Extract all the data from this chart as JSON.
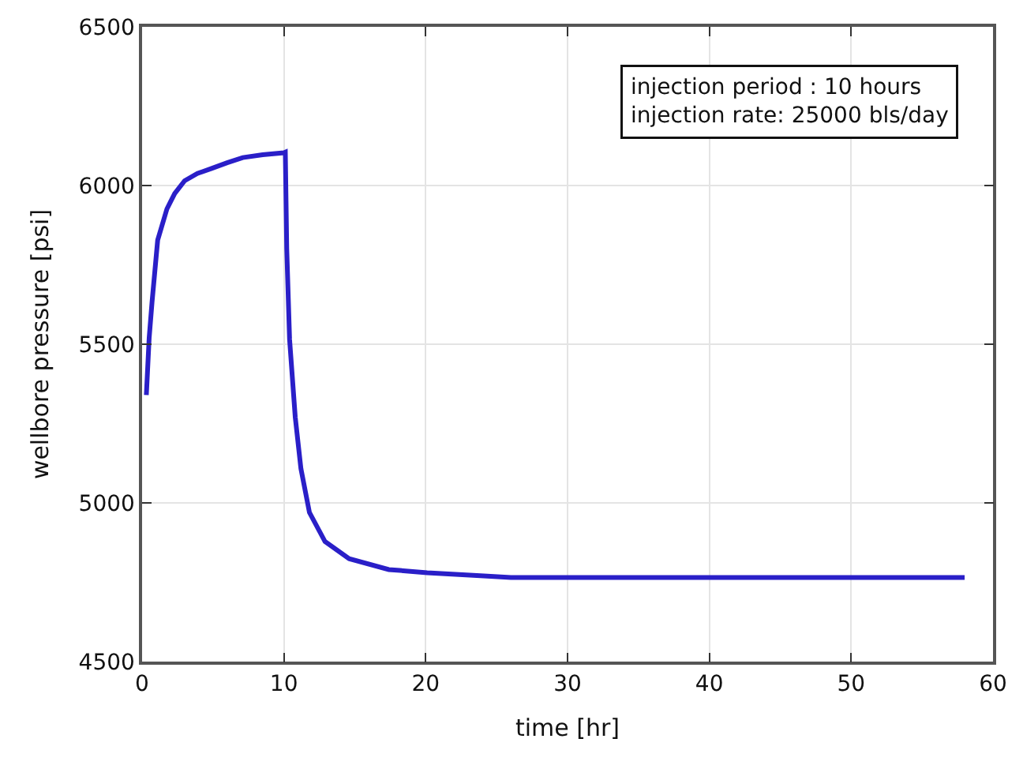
{
  "chart_data": {
    "type": "line",
    "xlabel": "time [hr]",
    "ylabel": "wellbore pressure [psi]",
    "annotations": [
      "injection period : 10 hours\ninjection rate: 25000 bls/day"
    ],
    "xlim": [
      0,
      60
    ],
    "xticks": [
      0,
      10,
      20,
      30,
      40,
      50,
      60
    ],
    "ylim": [
      4500,
      6500
    ],
    "yticks": [
      4500,
      5000,
      5500,
      6000,
      6500
    ],
    "grid": true,
    "marker": "none",
    "line_style": "solid",
    "series": [
      {
        "color": "#2a1fc8",
        "x": [
          0.3,
          0.5,
          0.7,
          1.1,
          1.75,
          2.3,
          3.0,
          3.9,
          4.9,
          6.0,
          7.1,
          8.5,
          10.0,
          10.1,
          10.2,
          10.4,
          10.8,
          11.2,
          11.8,
          12.9,
          14.6,
          17.4,
          20.1,
          24.1,
          26.0,
          30,
          40,
          50,
          58
        ],
        "values": [
          5340,
          5520,
          5632,
          5828,
          5926,
          5975,
          6015,
          6038,
          6054,
          6072,
          6088,
          6097,
          6103,
          6105,
          5800,
          5515,
          5270,
          5108,
          4970,
          4878,
          4824,
          4790,
          4780,
          4770,
          4765,
          4765,
          4765,
          4765,
          4765
        ]
      }
    ]
  }
}
